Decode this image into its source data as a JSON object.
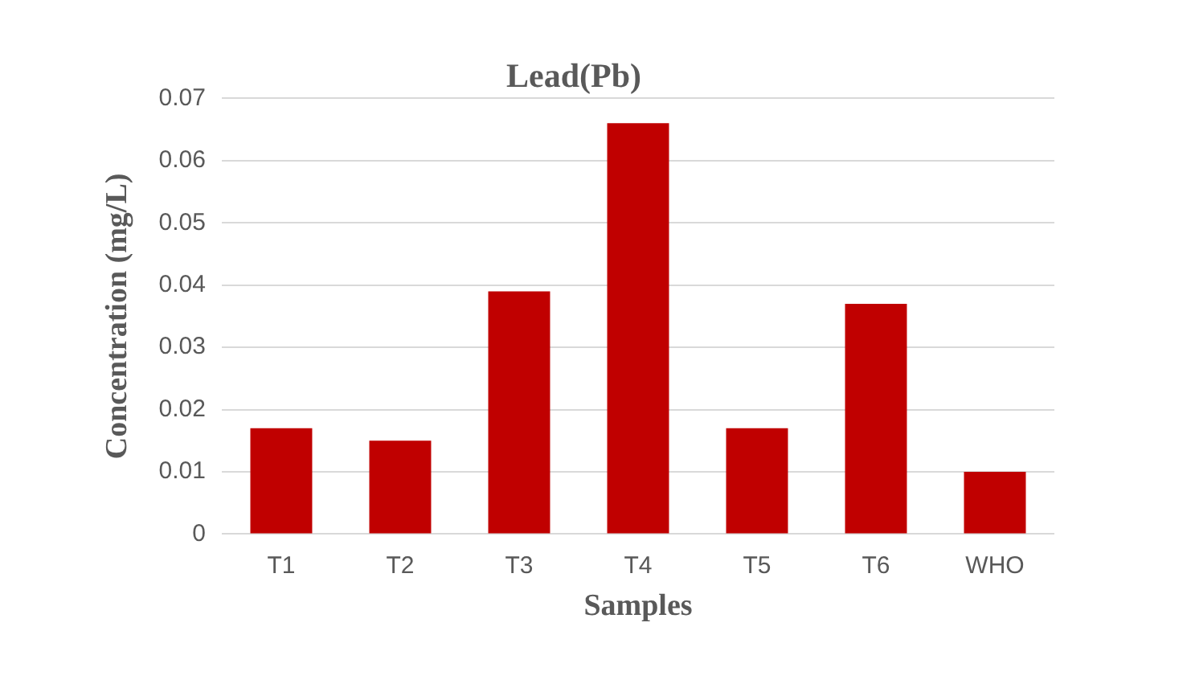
{
  "chart_data": {
    "type": "bar",
    "title": "Lead(Pb)",
    "xlabel": "Samples",
    "ylabel": "Concentration (mg/L)",
    "categories": [
      "T1",
      "T2",
      "T3",
      "T4",
      "T5",
      "T6",
      "WHO"
    ],
    "values": [
      0.017,
      0.015,
      0.039,
      0.066,
      0.017,
      0.037,
      0.01
    ],
    "color": "#c00000",
    "ylim": [
      0,
      0.07
    ],
    "yticks": [
      0,
      0.01,
      0.02,
      0.03,
      0.04,
      0.05,
      0.06,
      0.07
    ],
    "grid": "y",
    "legend": false
  }
}
